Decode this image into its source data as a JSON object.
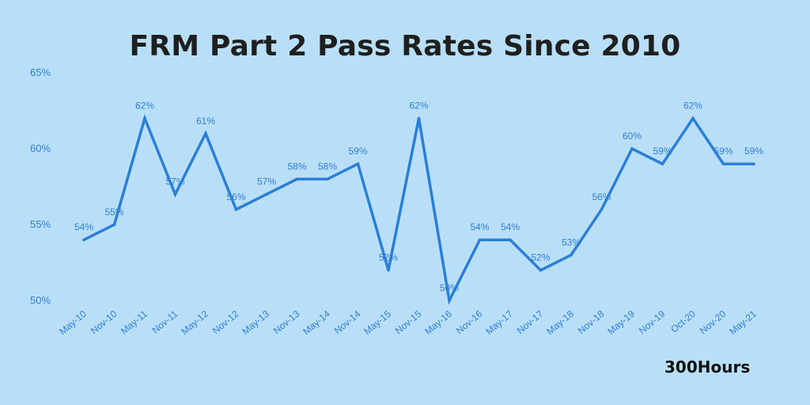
{
  "title": "FRM Part 2 Pass Rates Since 2010",
  "brand": "300Hours",
  "chart_data": {
    "type": "line",
    "title": "FRM Part 2 Pass Rates Since 2010",
    "xlabel": "",
    "ylabel": "",
    "ylim": [
      50,
      65
    ],
    "yticks": [
      50,
      55,
      60,
      65
    ],
    "ytick_labels": [
      "50%",
      "55%",
      "60%",
      "65%"
    ],
    "grid": false,
    "line_color": "#2b7fd6",
    "label_color": "#2f7fd0",
    "background": "#b9dff8",
    "categories": [
      "May-10",
      "Nov-10",
      "May-11",
      "Nov-11",
      "May-12",
      "Nov-12",
      "May-13",
      "Nov-13",
      "May-14",
      "Nov-14",
      "May-15",
      "Nov-15",
      "May-16",
      "Nov-16",
      "May-17",
      "Nov-17",
      "May-18",
      "Nov-18",
      "May-19",
      "Nov-19",
      "Oct-20",
      "Nov-20",
      "May-21"
    ],
    "values": [
      54,
      55,
      62,
      57,
      61,
      56,
      57,
      58,
      58,
      59,
      52,
      62,
      50,
      54,
      54,
      52,
      53,
      56,
      60,
      59,
      62,
      59,
      59
    ],
    "data_labels": [
      "54%",
      "55%",
      "62%",
      "57%",
      "61%",
      "56%",
      "57%",
      "58%",
      "58%",
      "59%",
      "52%",
      "62%",
      "50%",
      "54%",
      "54%",
      "52%",
      "53%",
      "56%",
      "60%",
      "59%",
      "62%",
      "59%",
      "59%"
    ]
  }
}
